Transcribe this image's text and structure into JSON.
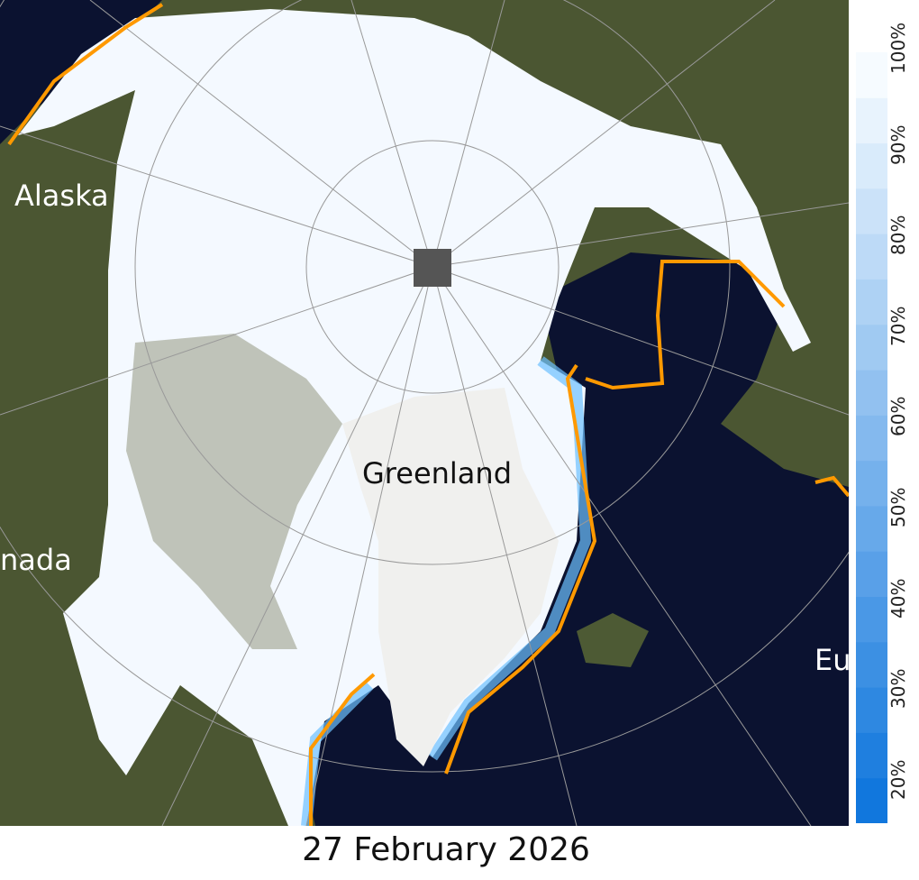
{
  "map": {
    "labels": {
      "alaska": "Alaska",
      "greenland": "Greenland",
      "canada": "nada",
      "europe": "Eu"
    },
    "ice_edge_color": "#ff9900",
    "ocean_color": "#0b1230",
    "land_color": "#4b5632"
  },
  "date": "27 February 2026",
  "colorbar": {
    "min_percent": 15,
    "max_percent": 100,
    "step_percent": 5,
    "ticks": [
      "20%",
      "30%",
      "40%",
      "50%",
      "60%",
      "70%",
      "80%",
      "90%",
      "100%"
    ],
    "low_color": "#1177dd",
    "high_color": "#f6fbff"
  }
}
